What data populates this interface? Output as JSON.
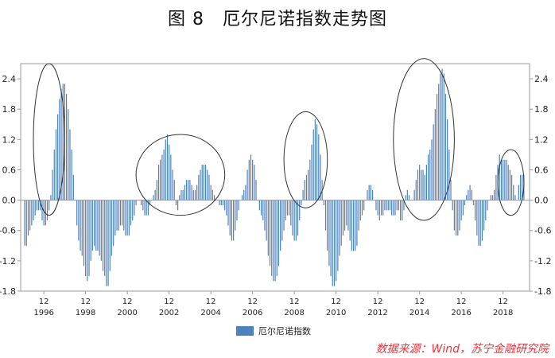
{
  "chart_data": {
    "type": "bar",
    "title": "图 8　厄尔尼诺指数走势图",
    "xlabel": "",
    "ylabel": "",
    "ylim": [
      -1.8,
      2.7
    ],
    "yticks": [
      "2.4",
      "1.8",
      "1.2",
      "0.6",
      "0.0",
      "-0.6",
      "-1.2",
      "-1.8"
    ],
    "ytick_values": [
      2.4,
      1.8,
      1.2,
      0.6,
      0.0,
      -0.6,
      -1.2,
      -1.8
    ],
    "x_start": "1996-01",
    "x_end": "2019-12",
    "x_tick_month_label": "12",
    "x_tick_years": [
      "1996",
      "1998",
      "2000",
      "2002",
      "2004",
      "2006",
      "2008",
      "2010",
      "2012",
      "2014",
      "2016",
      "2018"
    ],
    "series": [
      {
        "name": "厄尔尼诺指数",
        "color": "#4f81bd",
        "values": [
          -0.9,
          -0.9,
          -0.7,
          -0.6,
          -0.5,
          -0.4,
          -0.3,
          -0.2,
          -0.2,
          -0.2,
          -0.4,
          -0.5,
          -0.5,
          -0.4,
          -0.2,
          0.1,
          0.6,
          1.0,
          1.4,
          1.7,
          2.0,
          2.2,
          2.3,
          2.3,
          2.1,
          1.8,
          1.4,
          1.0,
          0.5,
          0.0,
          -0.5,
          -0.8,
          -1.0,
          -1.1,
          -1.3,
          -1.5,
          -1.6,
          -1.5,
          -1.2,
          -1.0,
          -0.9,
          -1.0,
          -1.0,
          -1.1,
          -1.2,
          -1.4,
          -1.5,
          -1.7,
          -1.7,
          -1.4,
          -1.1,
          -0.9,
          -0.7,
          -0.6,
          -0.6,
          -0.5,
          -0.5,
          -0.6,
          -0.7,
          -0.7,
          -0.7,
          -0.5,
          -0.4,
          -0.3,
          -0.1,
          0.0,
          0.0,
          -0.1,
          -0.2,
          -0.3,
          -0.3,
          -0.3,
          -0.1,
          0.0,
          0.1,
          0.2,
          0.4,
          0.7,
          0.8,
          0.9,
          1.0,
          1.2,
          1.3,
          1.1,
          0.9,
          0.6,
          0.4,
          -0.1,
          -0.2,
          0.1,
          0.2,
          0.2,
          0.3,
          0.4,
          0.4,
          0.4,
          0.3,
          0.2,
          0.2,
          0.3,
          0.5,
          0.6,
          0.7,
          0.7,
          0.7,
          0.6,
          0.5,
          0.3,
          0.2,
          0.1,
          0.0,
          0.0,
          -0.1,
          -0.1,
          -0.1,
          -0.2,
          -0.3,
          -0.5,
          -0.7,
          -0.8,
          -0.8,
          -0.6,
          -0.4,
          -0.2,
          0.0,
          0.1,
          0.2,
          0.3,
          0.6,
          0.8,
          0.9,
          0.8,
          0.7,
          0.4,
          0.0,
          -0.2,
          -0.3,
          -0.4,
          -0.6,
          -0.8,
          -1.1,
          -1.3,
          -1.5,
          -1.6,
          -1.6,
          -1.5,
          -1.3,
          -1.0,
          -0.8,
          -0.6,
          -0.4,
          -0.3,
          -0.3,
          -0.5,
          -0.7,
          -0.8,
          -0.8,
          -0.7,
          -0.4,
          -0.1,
          0.2,
          0.4,
          0.5,
          0.6,
          0.8,
          1.1,
          1.4,
          1.6,
          1.5,
          1.3,
          0.9,
          0.4,
          -0.1,
          -0.6,
          -1.0,
          -1.3,
          -1.5,
          -1.7,
          -1.7,
          -1.6,
          -1.4,
          -1.1,
          -0.9,
          -0.7,
          -0.6,
          -0.5,
          -0.6,
          -0.8,
          -1.0,
          -1.0,
          -1.0,
          -0.9,
          -0.6,
          -0.4,
          -0.3,
          -0.2,
          0.0,
          0.2,
          0.3,
          0.3,
          0.2,
          0.0,
          -0.2,
          -0.3,
          -0.4,
          -0.3,
          -0.3,
          -0.2,
          -0.2,
          -0.2,
          -0.2,
          -0.3,
          -0.3,
          -0.3,
          -0.2,
          -0.2,
          -0.4,
          -0.4,
          -0.2,
          0.1,
          0.2,
          0.1,
          0.0,
          0.0,
          0.2,
          0.4,
          0.6,
          0.7,
          0.6,
          0.6,
          0.5,
          0.7,
          0.9,
          1.0,
          1.2,
          1.5,
          1.8,
          2.1,
          2.3,
          2.5,
          2.6,
          2.5,
          2.1,
          1.6,
          1.0,
          0.4,
          -0.2,
          -0.6,
          -0.7,
          -0.7,
          -0.6,
          -0.4,
          -0.3,
          -0.1,
          0.1,
          0.2,
          0.3,
          0.2,
          -0.1,
          -0.4,
          -0.7,
          -0.9,
          -0.9,
          -0.8,
          -0.6,
          -0.4,
          -0.2,
          0.0,
          0.1,
          0.1,
          0.2,
          0.5,
          0.7,
          0.9,
          0.8,
          0.8,
          0.8,
          0.8,
          0.7,
          0.6,
          0.5,
          0.3,
          0.1,
          0.0,
          0.3,
          0.5,
          0.5,
          0.5
        ]
      }
    ],
    "annotations": [
      {
        "shape": "ellipse",
        "from": "1996-06",
        "to": "1997-12",
        "y_low": -0.3,
        "y_high": 2.7
      },
      {
        "shape": "ellipse",
        "from": "2001-05",
        "to": "2005-08",
        "y_low": -0.3,
        "y_high": 1.3
      },
      {
        "shape": "ellipse",
        "from": "2008-06",
        "to": "2010-07",
        "y_low": -0.15,
        "y_high": 1.75
      },
      {
        "shape": "ellipse",
        "from": "2013-09",
        "to": "2016-08",
        "y_low": -0.4,
        "y_high": 2.8
      },
      {
        "shape": "ellipse",
        "from": "2018-09",
        "to": "2019-12",
        "y_low": -0.3,
        "y_high": 1.0
      }
    ],
    "legend": {
      "entries": [
        "厄尔尼诺指数"
      ],
      "placement": "bottom-center"
    }
  },
  "source": "数据来源：Wind，苏宁金融研究院"
}
